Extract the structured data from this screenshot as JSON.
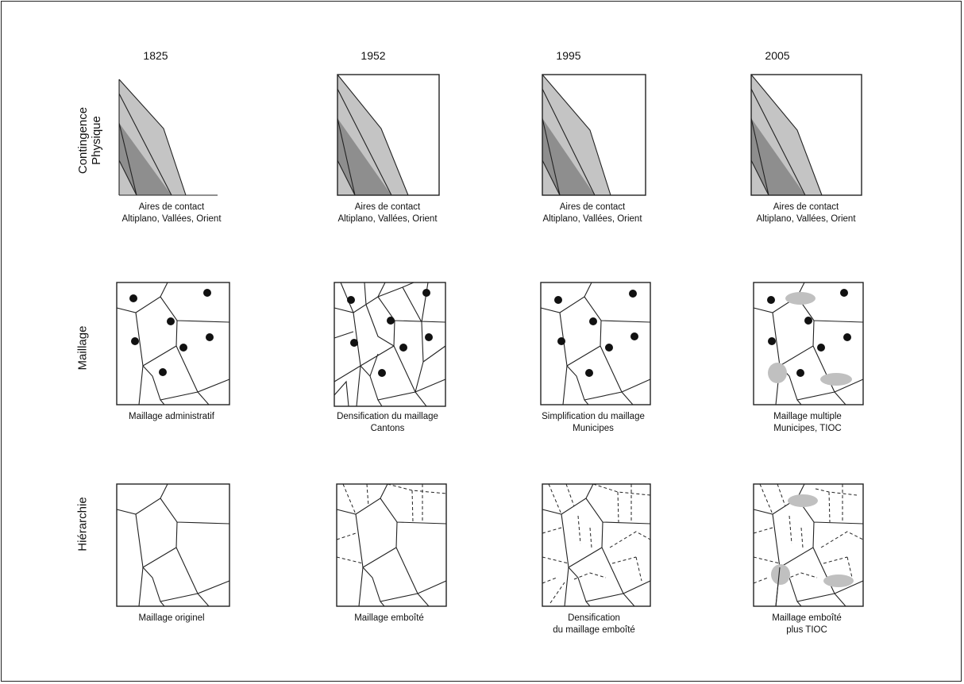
{
  "years": [
    "1825",
    "1952",
    "1995",
    "2005"
  ],
  "row_labels": {
    "contingence": [
      "Contingence",
      "Physique"
    ],
    "maillage": "Maillage",
    "hierarchie": "Hiérarchie"
  },
  "captions": {
    "contingence": [
      [
        "Aires de contact",
        "Altiplano, Vallées, Orient"
      ],
      [
        "Aires de contact",
        "Altiplano, Vallées, Orient"
      ],
      [
        "Aires de contact",
        "Altiplano, Vallées, Orient"
      ],
      [
        "Aires de contact",
        "Altiplano, Vallées, Orient"
      ]
    ],
    "maillage": [
      [
        "Maillage administratif",
        ""
      ],
      [
        "Densification du maillage",
        "Cantons"
      ],
      [
        "Simplification du maillage",
        "Municipes"
      ],
      [
        "Maillage multiple",
        "Municipes, TIOC"
      ]
    ],
    "hierarchie": [
      [
        "Maillage originel",
        ""
      ],
      [
        "Maillage emboîté",
        ""
      ],
      [
        "Densification",
        "du maillage emboîté"
      ],
      [
        "Maillage emboîté",
        "plus TIOC"
      ]
    ]
  },
  "colors": {
    "light_zone": "#c4c4c4",
    "dark_zone": "#8e8e8e",
    "line": "#222222",
    "dot": "#111111",
    "tioc": "#c0c0c0"
  }
}
